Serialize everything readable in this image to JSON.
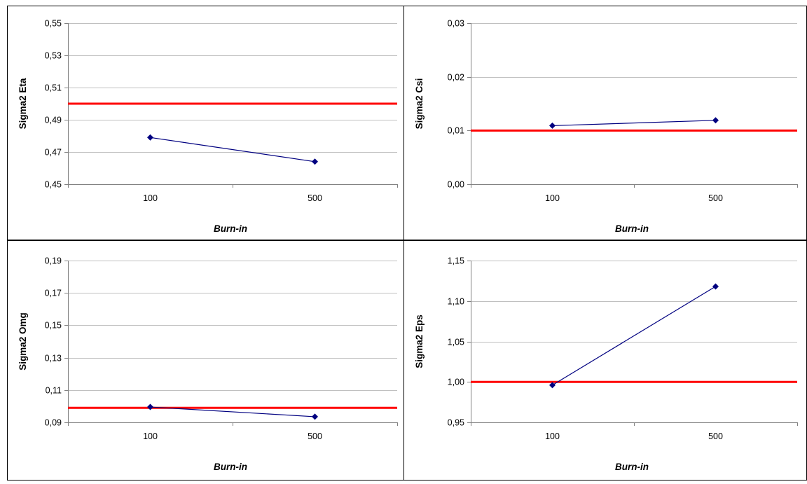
{
  "chart_data": [
    {
      "type": "line",
      "xlabel": "Burn-in",
      "ylabel": "Sigma2 Eta",
      "categories": [
        "100",
        "500"
      ],
      "ylim": [
        0.45,
        0.55
      ],
      "yticks": [
        "0,45",
        "0,47",
        "0,49",
        "0,51",
        "0,53",
        "0,55"
      ],
      "series": [
        {
          "values": [
            0.479,
            0.464
          ]
        }
      ],
      "reference_line": 0.5,
      "grid": true
    },
    {
      "type": "line",
      "xlabel": "Burn-in",
      "ylabel": "Sigma2 Csi",
      "categories": [
        "100",
        "500"
      ],
      "ylim": [
        0.0,
        0.03
      ],
      "yticks": [
        "0,00",
        "0,01",
        "0,02",
        "0,03"
      ],
      "series": [
        {
          "values": [
            0.0109,
            0.0119
          ]
        }
      ],
      "reference_line": 0.01,
      "grid": true
    },
    {
      "type": "line",
      "xlabel": "Burn-in",
      "ylabel": "Sigma2 Omg",
      "categories": [
        "100",
        "500"
      ],
      "ylim": [
        0.09,
        0.19
      ],
      "yticks": [
        "0,09",
        "0,11",
        "0,13",
        "0,15",
        "0,17",
        "0,19"
      ],
      "series": [
        {
          "values": [
            0.0995,
            0.0935
          ]
        }
      ],
      "reference_line": 0.099,
      "grid": true
    },
    {
      "type": "line",
      "xlabel": "Burn-in",
      "ylabel": "Sigma2 Eps",
      "categories": [
        "100",
        "500"
      ],
      "ylim": [
        0.95,
        1.15
      ],
      "yticks": [
        "0,95",
        "1,00",
        "1,05",
        "1,10",
        "1,15"
      ],
      "series": [
        {
          "values": [
            0.996,
            1.118
          ]
        }
      ],
      "reference_line": 1.0,
      "grid": true
    }
  ],
  "colors": {
    "series": "#000080",
    "reference": "#ff0000",
    "grid": "#c0c0c0",
    "axis": "#808080",
    "frame": "#000000"
  }
}
